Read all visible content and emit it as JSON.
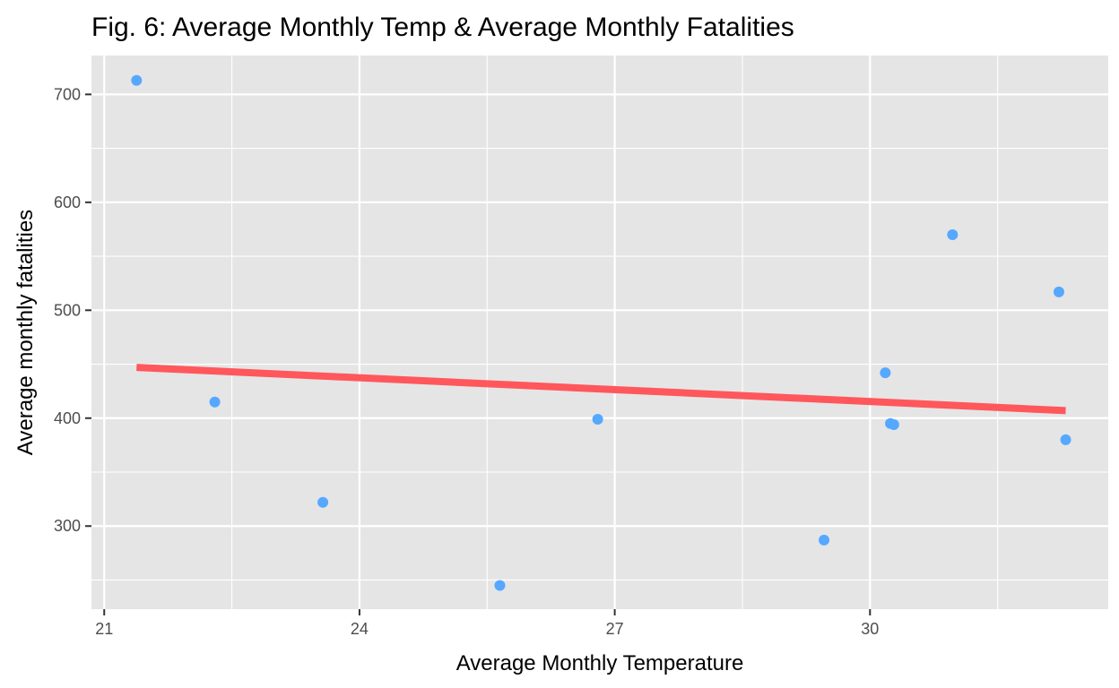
{
  "chart_data": {
    "type": "scatter",
    "title": "Fig. 6: Average Monthly Temp & Average Monthly Fatalities",
    "xlabel": "Average Monthly Temperature",
    "ylabel": "Average monthly fatalities",
    "xlim": [
      20.85,
      32.8
    ],
    "ylim": [
      223,
      736
    ],
    "x_ticks": [
      21,
      24,
      27,
      30
    ],
    "x_tick_labels": [
      "21",
      "24",
      "27",
      "30"
    ],
    "x_minor_ticks": [
      22.5,
      25.5,
      28.5,
      31.5
    ],
    "y_ticks": [
      300,
      400,
      500,
      600,
      700
    ],
    "y_tick_labels": [
      "300",
      "400",
      "500",
      "600",
      "700"
    ],
    "y_minor_ticks": [
      250,
      350,
      450,
      550,
      650
    ],
    "grid": true,
    "legend": "none",
    "points": [
      {
        "x": 21.38,
        "y": 713
      },
      {
        "x": 22.3,
        "y": 415
      },
      {
        "x": 23.57,
        "y": 322
      },
      {
        "x": 25.65,
        "y": 245
      },
      {
        "x": 26.8,
        "y": 399
      },
      {
        "x": 29.46,
        "y": 287
      },
      {
        "x": 30.18,
        "y": 442
      },
      {
        "x": 30.24,
        "y": 395
      },
      {
        "x": 30.28,
        "y": 394
      },
      {
        "x": 30.97,
        "y": 570
      },
      {
        "x": 32.22,
        "y": 517
      },
      {
        "x": 32.3,
        "y": 380
      }
    ],
    "fit_line": {
      "x": [
        21.38,
        32.3
      ],
      "y": [
        447,
        407
      ]
    },
    "colors": {
      "points": "#56a8ff",
      "fit_line": "#ff575c",
      "panel": "#e5e5e5"
    }
  }
}
